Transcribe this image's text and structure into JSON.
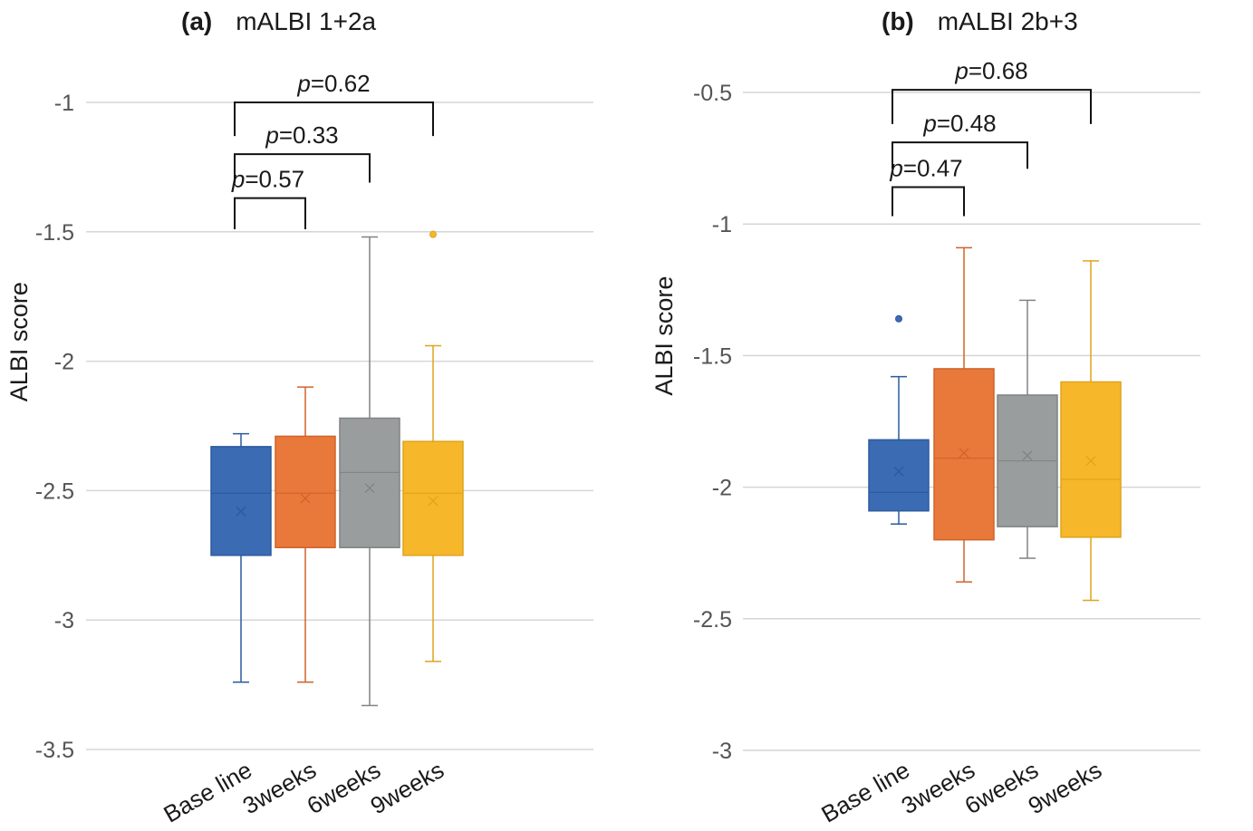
{
  "colors": {
    "series": [
      "#3A6BB3",
      "#E8793B",
      "#9A9D9E",
      "#F6B82A"
    ],
    "series_stroke": [
      "#2D5A9E",
      "#D0632A",
      "#808384",
      "#DFA41C"
    ],
    "grid": "#D6D6D6",
    "text": "#1a1a1a",
    "axis_text": "#555555"
  },
  "chart_data": [
    {
      "type": "box",
      "panel_label": "(a)",
      "title": "mALBI 1+2a",
      "ylabel": "ALBI score",
      "ylim": [
        -3.5,
        -1
      ],
      "yticks": [
        -1,
        -1.5,
        -2,
        -2.5,
        -3,
        -3.5
      ],
      "ytick_labels": [
        "-1",
        "-1.5",
        "-2",
        "-2.5",
        "-3",
        "-3.5"
      ],
      "grid": true,
      "categories": [
        "Base line",
        "3weeks",
        "6weeks",
        "9weeks"
      ],
      "boxes": [
        {
          "whisker_low": -3.24,
          "q1": -2.75,
          "median": -2.51,
          "q3": -2.33,
          "whisker_high": -2.28,
          "mean": -2.58,
          "outliers": []
        },
        {
          "whisker_low": -3.24,
          "q1": -2.72,
          "median": -2.51,
          "q3": -2.29,
          "whisker_high": -2.1,
          "mean": -2.53,
          "outliers": []
        },
        {
          "whisker_low": -3.33,
          "q1": -2.72,
          "median": -2.43,
          "q3": -2.22,
          "whisker_high": -1.52,
          "mean": -2.49,
          "outliers": []
        },
        {
          "whisker_low": -3.16,
          "q1": -2.75,
          "median": -2.51,
          "q3": -2.31,
          "whisker_high": -1.94,
          "mean": -2.54,
          "outliers": [
            -1.51
          ]
        }
      ],
      "comparisons": [
        {
          "from": 0,
          "to": 1,
          "p_prefix": "p",
          "p_value": "=0.57",
          "bracket_top": -1.37,
          "bracket_bottom": -1.49
        },
        {
          "from": 0,
          "to": 2,
          "p_prefix": "p",
          "p_value": "=0.33",
          "bracket_top": -1.2,
          "bracket_bottom": -1.31
        },
        {
          "from": 0,
          "to": 3,
          "p_prefix": "p",
          "p_value": "=0.62",
          "bracket_top": -1.0,
          "bracket_bottom": -1.13
        }
      ]
    },
    {
      "type": "box",
      "panel_label": "(b)",
      "title": "mALBI 2b+3",
      "ylabel": "ALBI score",
      "ylim": [
        -3,
        -0.5
      ],
      "yticks": [
        -0.5,
        -1,
        -1.5,
        -2,
        -2.5,
        -3
      ],
      "ytick_labels": [
        "-0.5",
        "-1",
        "-1.5",
        "-2",
        "-2.5",
        "-3"
      ],
      "grid": true,
      "categories": [
        "Base line",
        "3weeks",
        "6weeks",
        "9weeks"
      ],
      "boxes": [
        {
          "whisker_low": -2.14,
          "q1": -2.09,
          "median": -2.02,
          "q3": -1.82,
          "whisker_high": -1.58,
          "mean": -1.94,
          "outliers": [
            -1.36
          ]
        },
        {
          "whisker_low": -2.36,
          "q1": -2.2,
          "median": -1.89,
          "q3": -1.55,
          "whisker_high": -1.09,
          "mean": -1.87,
          "outliers": []
        },
        {
          "whisker_low": -2.27,
          "q1": -2.15,
          "median": -1.9,
          "q3": -1.65,
          "whisker_high": -1.29,
          "mean": -1.88,
          "outliers": []
        },
        {
          "whisker_low": -2.43,
          "q1": -2.19,
          "median": -1.97,
          "q3": -1.6,
          "whisker_high": -1.14,
          "mean": -1.9,
          "outliers": []
        }
      ],
      "comparisons": [
        {
          "from": 0,
          "to": 1,
          "p_prefix": "p",
          "p_value": "=0.47",
          "bracket_top": -0.86,
          "bracket_bottom": -0.97
        },
        {
          "from": 0,
          "to": 2,
          "p_prefix": "p",
          "p_value": "=0.48",
          "bracket_top": -0.69,
          "bracket_bottom": -0.79
        },
        {
          "from": 0,
          "to": 3,
          "p_prefix": "p",
          "p_value": "=0.68",
          "bracket_top": -0.49,
          "bracket_bottom": -0.62
        }
      ]
    }
  ]
}
